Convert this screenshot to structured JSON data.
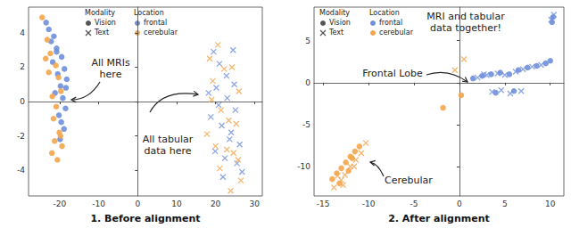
{
  "chart_data": [
    {
      "type": "scatter",
      "title": "1. Before alignment",
      "xlim": [
        -28,
        32
      ],
      "ylim": [
        -5.5,
        5.5
      ],
      "xticks": [
        -20,
        -10,
        0,
        10,
        20,
        30
      ],
      "yticks": [
        -4,
        -2,
        0,
        2,
        4
      ],
      "grid": false,
      "legend_groups": [
        {
          "title": "Modality",
          "items": [
            {
              "name": "Vision",
              "marker": "circle"
            },
            {
              "name": "Text",
              "marker": "cross"
            }
          ]
        },
        {
          "title": "Location",
          "items": [
            {
              "name": "frontal",
              "color": "#6f8fdc"
            },
            {
              "name": "cerebular",
              "color": "#f4a54c"
            }
          ]
        }
      ],
      "annotations": [
        "All MRIs\nhere",
        "All tabular\ndata here"
      ],
      "series": [
        {
          "modality": "Vision",
          "location": "frontal",
          "x": [
            -23.5,
            -22.8,
            -21.5,
            -20.8,
            -19.5,
            -18.8,
            -18.2,
            -19.8,
            -20.5,
            -21.8,
            -19.2,
            -18.5,
            -20.2,
            -21.2,
            -19.6,
            -18.9,
            -20.8,
            -22.2,
            -19.9,
            -18.4
          ],
          "y": [
            4.6,
            4.2,
            3.8,
            3.1,
            2.6,
            1.9,
            1.3,
            0.9,
            1.6,
            2.3,
            0.2,
            -0.4,
            -0.8,
            0.5,
            -1.2,
            -1.6,
            2.9,
            3.5,
            -2.2,
            0.8
          ]
        },
        {
          "modality": "Vision",
          "location": "cerebular",
          "x": [
            -24.5,
            -23.2,
            -22.4,
            -21.0,
            -20.3,
            -19.7,
            -20.9,
            -21.6,
            -22.8,
            -20.1,
            -19.4,
            -21.3,
            -22.0,
            -20.6,
            -19.8,
            -21.9,
            -23.6
          ],
          "y": [
            4.9,
            3.6,
            2.8,
            2.1,
            1.4,
            0.6,
            -0.3,
            -1.0,
            1.7,
            -1.8,
            -2.6,
            -2.3,
            -3.0,
            -3.4,
            -2.0,
            0.3,
            2.5
          ]
        },
        {
          "modality": "Text",
          "location": "frontal",
          "x": [
            19.5,
            21.0,
            22.8,
            24.5,
            20.2,
            23.0,
            25.1,
            18.8,
            21.6,
            24.0,
            26.2,
            19.9,
            22.4,
            25.5,
            20.8,
            23.6,
            26.8,
            21.9,
            24.8,
            18.2
          ],
          "y": [
            2.9,
            2.2,
            1.5,
            3.0,
            0.8,
            0.2,
            -0.5,
            -0.9,
            -1.4,
            -1.8,
            -2.5,
            -2.9,
            -3.3,
            -3.6,
            -0.2,
            -2.2,
            -4.1,
            -4.4,
            1.0,
            0.5
          ]
        },
        {
          "modality": "Text",
          "location": "cerebular",
          "x": [
            18.5,
            20.6,
            22.2,
            24.2,
            26.0,
            19.3,
            21.4,
            23.4,
            25.3,
            17.8,
            20.0,
            22.9,
            24.6,
            26.5,
            21.1,
            23.9,
            19.0,
            25.8
          ],
          "y": [
            2.5,
            3.3,
            1.9,
            2.0,
            0.6,
            1.2,
            -0.5,
            -1.1,
            -1.3,
            -1.9,
            -2.6,
            -2.8,
            -3.0,
            -4.6,
            -3.9,
            -5.2,
            0.1,
            -3.4
          ]
        }
      ]
    },
    {
      "type": "scatter",
      "title": "2. After alignment",
      "xlim": [
        -16,
        11.5
      ],
      "ylim": [
        -13.5,
        9
      ],
      "xticks": [
        -15,
        -10,
        -5,
        0,
        5,
        10
      ],
      "yticks": [
        -10,
        -5,
        0,
        5
      ],
      "grid": false,
      "legend_groups": [
        {
          "title": "Modality",
          "items": [
            {
              "name": "Vision",
              "marker": "circle"
            },
            {
              "name": "Text",
              "marker": "cross"
            }
          ]
        },
        {
          "title": "Location",
          "items": [
            {
              "name": "frontal",
              "color": "#6f8fdc"
            },
            {
              "name": "cerebular",
              "color": "#f4a54c"
            }
          ]
        }
      ],
      "annotations": [
        "MRI and tabular\ndata together!",
        "Frontal Lobe",
        "Cerebular"
      ],
      "series": [
        {
          "modality": "Vision",
          "location": "frontal",
          "x": [
            1.5,
            2.5,
            3.5,
            4.5,
            5.5,
            6.5,
            7.5,
            8.5,
            9.5,
            10.0,
            4.0,
            6.0,
            10.2,
            10.3
          ],
          "y": [
            0.5,
            0.8,
            1.0,
            1.2,
            1.0,
            1.5,
            1.8,
            2.0,
            2.3,
            2.6,
            -1.2,
            -1.0,
            7.2,
            7.8
          ]
        },
        {
          "modality": "Vision",
          "location": "cerebular",
          "x": [
            -14.0,
            -13.5,
            -13.0,
            -12.5,
            -12.0,
            -11.5,
            -11.0,
            -13.2,
            -12.2,
            -11.8,
            -1.8,
            0.2
          ],
          "y": [
            -11.5,
            -10.8,
            -10.2,
            -9.5,
            -8.8,
            -8.2,
            -7.6,
            -12.0,
            -10.5,
            -9.0,
            -3.0,
            -1.5
          ]
        },
        {
          "modality": "Text",
          "location": "frontal",
          "x": [
            2.0,
            3.0,
            4.2,
            5.0,
            6.2,
            7.0,
            3.6,
            4.6,
            5.6,
            6.8,
            8.0,
            9.0,
            10.4,
            10.1,
            2.7
          ],
          "y": [
            0.6,
            0.9,
            1.1,
            0.9,
            1.3,
            1.6,
            -1.1,
            -0.9,
            -1.3,
            -1.0,
            1.9,
            2.1,
            8.1,
            7.5,
            1.0
          ]
        },
        {
          "modality": "Text",
          "location": "cerebular",
          "x": [
            -13.8,
            -13.0,
            -12.6,
            -12.0,
            -11.4,
            -10.8,
            -10.3,
            -12.8,
            -11.6,
            -13.4,
            -0.5,
            0.5
          ],
          "y": [
            -12.5,
            -11.6,
            -11.0,
            -10.0,
            -9.2,
            -8.4,
            -7.2,
            -12.2,
            -10.0,
            -11.1,
            1.5,
            2.8
          ]
        }
      ]
    }
  ]
}
